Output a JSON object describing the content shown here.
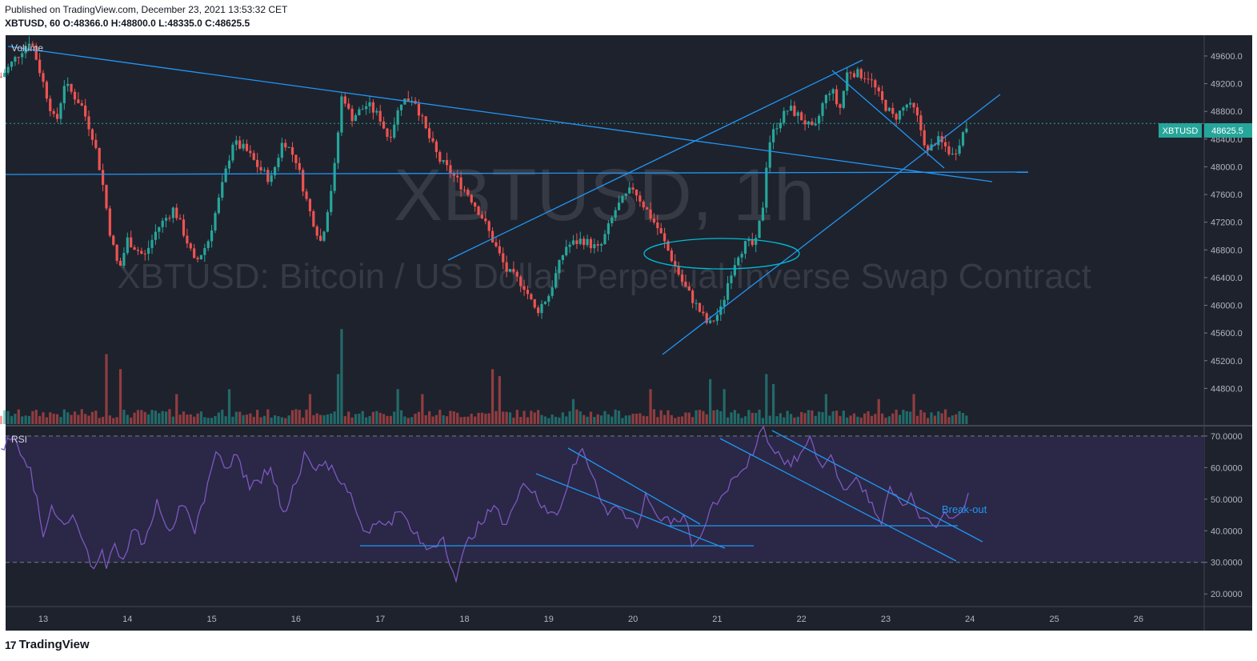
{
  "header": {
    "published": "Published on TradingView.com, December 23, 2021 13:53:32 CET",
    "symbol_line": "XBTUSD, 60 O:48366.0 H:48800.0 L:48335.0 C:48625.5"
  },
  "footer": {
    "brand": "TradingView",
    "brand_mark": "17"
  },
  "colors": {
    "background": "#1e222d",
    "rsi_band": "#2a2846",
    "up": "#26a69a",
    "down": "#ef5350",
    "drawing": "#2196f3",
    "rsi_line": "#7e57c2",
    "price_tag": "#26a69a",
    "axis_text": "#b2b5be",
    "watermark": "#3a3e4a"
  },
  "chart_data": [
    {
      "type": "candlestick",
      "watermark": {
        "title": "XBTUSD, 1h",
        "subtitle": "XBTUSD: Bitcoin / US Dollar Perpetual Inverse Swap Contract"
      },
      "volume_label": "Volume",
      "x_ticks": [
        "13",
        "14",
        "15",
        "16",
        "17",
        "18",
        "19",
        "20",
        "21",
        "22",
        "23",
        "24",
        "25",
        "26"
      ],
      "y_ticks": [
        "49600.0",
        "49200.0",
        "48800.0",
        "48400.0",
        "48000.0",
        "47600.0",
        "47200.0",
        "46800.0",
        "46400.0",
        "46000.0",
        "45600.0",
        "45200.0",
        "44800.0"
      ],
      "ylim": [
        44400,
        49900
      ],
      "last_price_label": "XBTUSD",
      "last_price": "48625.5",
      "path_points": [
        [
          12.5,
          49300
        ],
        [
          12.85,
          49850
        ],
        [
          13.05,
          49000
        ],
        [
          13.15,
          48600
        ],
        [
          13.25,
          49200
        ],
        [
          13.45,
          48900
        ],
        [
          13.6,
          48400
        ],
        [
          13.7,
          47800
        ],
        [
          13.8,
          47000
        ],
        [
          13.9,
          46500
        ],
        [
          14.0,
          46950
        ],
        [
          14.2,
          46700
        ],
        [
          14.35,
          47100
        ],
        [
          14.55,
          47400
        ],
        [
          14.7,
          46950
        ],
        [
          14.8,
          46600
        ],
        [
          14.95,
          46900
        ],
        [
          15.1,
          47600
        ],
        [
          15.25,
          48350
        ],
        [
          15.4,
          48250
        ],
        [
          15.55,
          48000
        ],
        [
          15.7,
          47800
        ],
        [
          15.85,
          48400
        ],
        [
          16.0,
          48100
        ],
        [
          16.15,
          47400
        ],
        [
          16.3,
          46900
        ],
        [
          16.45,
          47900
        ],
        [
          16.55,
          49100
        ],
        [
          16.65,
          48700
        ],
        [
          16.85,
          48900
        ],
        [
          17.0,
          48700
        ],
        [
          17.1,
          48400
        ],
        [
          17.25,
          48950
        ],
        [
          17.4,
          49000
        ],
        [
          17.55,
          48500
        ],
        [
          17.7,
          48100
        ],
        [
          17.85,
          47900
        ],
        [
          18.05,
          47600
        ],
        [
          18.2,
          47300
        ],
        [
          18.35,
          46900
        ],
        [
          18.5,
          46500
        ],
        [
          18.7,
          46300
        ],
        [
          18.85,
          45900
        ],
        [
          19.0,
          46150
        ],
        [
          19.1,
          46500
        ],
        [
          19.2,
          46850
        ],
        [
          19.4,
          46950
        ],
        [
          19.6,
          46800
        ],
        [
          19.8,
          47400
        ],
        [
          20.0,
          47700
        ],
        [
          20.15,
          47400
        ],
        [
          20.3,
          47100
        ],
        [
          20.45,
          46700
        ],
        [
          20.6,
          46300
        ],
        [
          20.75,
          46000
        ],
        [
          20.9,
          45700
        ],
        [
          21.05,
          45950
        ],
        [
          21.15,
          46450
        ],
        [
          21.25,
          46750
        ],
        [
          21.35,
          46900
        ],
        [
          21.45,
          46850
        ],
        [
          21.55,
          47500
        ],
        [
          21.6,
          48300
        ],
        [
          21.7,
          48600
        ],
        [
          21.85,
          48850
        ],
        [
          22.0,
          48700
        ],
        [
          22.15,
          48500
        ],
        [
          22.25,
          48900
        ],
        [
          22.35,
          49150
        ],
        [
          22.45,
          48800
        ],
        [
          22.55,
          49400
        ],
        [
          22.65,
          49350
        ],
        [
          22.8,
          49300
        ],
        [
          22.95,
          48950
        ],
        [
          23.1,
          48700
        ],
        [
          23.25,
          48900
        ],
        [
          23.35,
          48800
        ],
        [
          23.5,
          48200
        ],
        [
          23.6,
          48400
        ],
        [
          23.7,
          48300
        ],
        [
          23.8,
          48150
        ],
        [
          23.9,
          48450
        ],
        [
          23.98,
          48625
        ]
      ],
      "volume_spikes": [
        [
          13.75,
          0.7
        ],
        [
          13.9,
          0.55
        ],
        [
          14.6,
          0.3
        ],
        [
          15.2,
          0.35
        ],
        [
          16.15,
          0.3
        ],
        [
          16.55,
          0.95
        ],
        [
          16.5,
          0.5
        ],
        [
          17.2,
          0.35
        ],
        [
          17.5,
          0.3
        ],
        [
          18.35,
          0.55
        ],
        [
          18.4,
          0.48
        ],
        [
          19.3,
          0.25
        ],
        [
          20.2,
          0.35
        ],
        [
          20.9,
          0.45
        ],
        [
          21.1,
          0.35
        ],
        [
          21.6,
          0.5
        ],
        [
          21.65,
          0.4
        ],
        [
          22.3,
          0.3
        ],
        [
          22.9,
          0.25
        ],
        [
          23.35,
          0.3
        ]
      ],
      "annotations": [
        "trendlines",
        "ellipse"
      ]
    },
    {
      "type": "line",
      "name": "RSI",
      "y_ticks": [
        "70.0000",
        "60.0000",
        "50.0000",
        "40.0000",
        "30.0000",
        "20.0000"
      ],
      "ylim": [
        16,
        73
      ],
      "bands": [
        30,
        70
      ],
      "x": [
        12.5,
        12.65,
        12.85,
        13.0,
        13.1,
        13.25,
        13.35,
        13.45,
        13.6,
        13.7,
        13.75,
        13.85,
        13.95,
        14.05,
        14.2,
        14.35,
        14.5,
        14.65,
        14.8,
        14.95,
        15.05,
        15.15,
        15.3,
        15.45,
        15.55,
        15.7,
        15.85,
        16.0,
        16.1,
        16.2,
        16.35,
        16.5,
        16.65,
        16.8,
        16.95,
        17.1,
        17.25,
        17.4,
        17.55,
        17.75,
        17.9,
        18.05,
        18.2,
        18.35,
        18.45,
        18.55,
        18.7,
        18.8,
        18.95,
        19.1,
        19.25,
        19.4,
        19.55,
        19.7,
        19.8,
        19.95,
        20.05,
        20.15,
        20.3,
        20.45,
        20.6,
        20.7,
        20.8,
        20.95,
        21.05,
        21.2,
        21.35,
        21.5,
        21.55,
        21.65,
        21.8,
        21.95,
        22.1,
        22.25,
        22.35,
        22.5,
        22.65,
        22.8,
        22.95,
        23.05,
        23.2,
        23.3,
        23.4,
        23.5,
        23.6,
        23.7,
        23.8,
        23.9,
        23.98
      ],
      "y": [
        66,
        70,
        60,
        38,
        48,
        42,
        45,
        38,
        28,
        34,
        28,
        36,
        31,
        40,
        36,
        50,
        40,
        48,
        39,
        55,
        65,
        60,
        64,
        53,
        56,
        60,
        46,
        55,
        65,
        60,
        62,
        56,
        52,
        40,
        42,
        43,
        46,
        39,
        34,
        38,
        24,
        38,
        42,
        48,
        42,
        46,
        55,
        52,
        48,
        45,
        57,
        66,
        56,
        45,
        48,
        44,
        41,
        52,
        44,
        42,
        45,
        35,
        38,
        49,
        51,
        57,
        60,
        71,
        73,
        66,
        61,
        62,
        70,
        60,
        64,
        53,
        57,
        49,
        42,
        54,
        48,
        52,
        44,
        44,
        41,
        46,
        44,
        46,
        52
      ],
      "annotation_text": "Break-out"
    }
  ]
}
